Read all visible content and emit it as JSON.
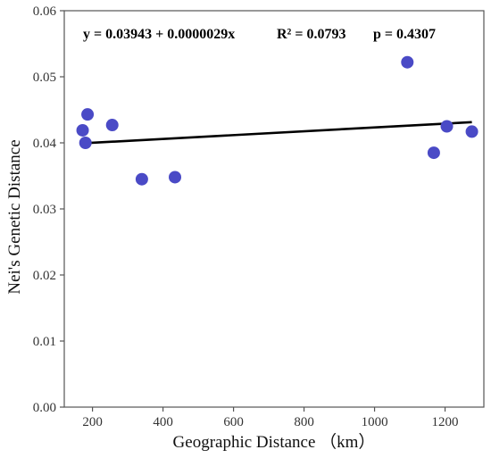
{
  "chart_data": {
    "type": "scatter",
    "title": "",
    "xlabel": "Geographic Distance （km）",
    "ylabel": "Nei's Genetic Distance",
    "xlim": [
      120,
      1310
    ],
    "ylim": [
      0,
      0.06
    ],
    "x_ticks": [
      200,
      400,
      600,
      800,
      1000,
      1200
    ],
    "x_tick_labels": [
      "200",
      "400",
      "600",
      "800",
      "1000",
      "1200"
    ],
    "y_ticks": [
      0,
      0.01,
      0.02,
      0.03,
      0.04,
      0.05,
      0.06
    ],
    "y_tick_labels": [
      "0.00",
      "0.01",
      "0.02",
      "0.03",
      "0.04",
      "0.05",
      "0.06"
    ],
    "grid": false,
    "points": {
      "x": [
        172,
        180,
        186,
        256,
        340,
        434,
        1093,
        1168,
        1205,
        1276
      ],
      "y": [
        0.0419,
        0.04,
        0.0443,
        0.0427,
        0.0345,
        0.0348,
        0.0522,
        0.0385,
        0.0425,
        0.0417
      ]
    },
    "regression": {
      "intercept": 0.03943,
      "slope": 2.9e-06,
      "x_range": [
        180,
        1276
      ]
    },
    "annotations": {
      "equation": "y = 0.03943 + 0.0000029x",
      "r2": "R² = 0.0793",
      "p": "p = 0.4307"
    },
    "colors": {
      "points": "#4a4ac6",
      "line": "#000000",
      "axis": "#555555"
    }
  }
}
